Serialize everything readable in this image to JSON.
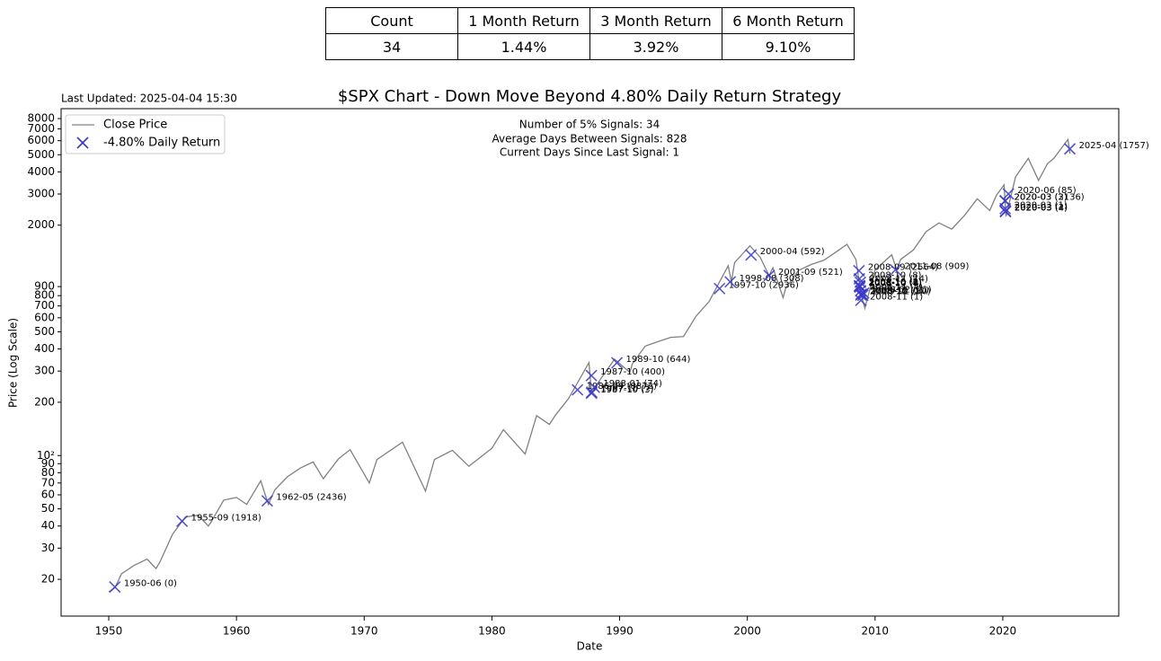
{
  "table": {
    "header": [
      "Count",
      "1 Month Return",
      "3 Month Return",
      "6 Month Return"
    ],
    "rows": [
      [
        "34",
        "1.44%",
        "3.92%",
        "9.10%"
      ]
    ]
  },
  "chart_data": {
    "type": "line",
    "title": "$SPX Chart - Down Move Beyond 4.80% Daily Return Strategy",
    "updated": "Last Updated: 2025-04-04 15:30",
    "xlabel": "Date",
    "ylabel": "Price (Log Scale)",
    "annotations": [
      "Number of 5% Signals: 34",
      "Average Days Between Signals: 828",
      "Current Days Since Last Signal: 1"
    ],
    "xlim": [
      1946.27,
      2029.08
    ],
    "xticks": [
      1950,
      1960,
      1970,
      1980,
      1990,
      2000,
      2010,
      2020
    ],
    "ylim": [
      12.4,
      9100
    ],
    "log_y": true,
    "legend": "upper left",
    "yticks": [
      20,
      30,
      40,
      50,
      60,
      70,
      80,
      90,
      {
        "value": 100,
        "label": "10²"
      },
      200,
      300,
      400,
      500,
      600,
      700,
      800,
      900,
      2000,
      3000,
      4000,
      5000,
      6000,
      7000,
      8000
    ],
    "series": [
      {
        "name": "Close Price",
        "color": "#808080",
        "x": [
          1950.0,
          1950.5,
          1951,
          1952,
          1953,
          1953.7,
          1954,
          1955,
          1956,
          1957,
          1957.8,
          1958,
          1959,
          1960,
          1960.8,
          1961.9,
          1962.5,
          1963,
          1964,
          1965,
          1966,
          1966.8,
          1968,
          1968.9,
          1970.4,
          1971,
          1973,
          1974.8,
          1975.5,
          1976.9,
          1978.2,
          1980,
          1980.9,
          1982.6,
          1983.5,
          1984.5,
          1985,
          1986,
          1987.6,
          1987.8,
          1988.5,
          1989.6,
          1990.8,
          1991,
          1992,
          1993,
          1994,
          1995,
          1996,
          1997,
          1997.8,
          1998.5,
          1998.75,
          1999,
          2000.2,
          2001,
          2001.7,
          2002,
          2002.8,
          2003,
          2004,
          2005,
          2006,
          2007,
          2007.8,
          2008.5,
          2008.9,
          2009.2,
          2010,
          2011.3,
          2011.7,
          2012,
          2013,
          2014,
          2015,
          2016,
          2017,
          2018,
          2018.98,
          2019.5,
          2020.1,
          2020.25,
          2021,
          2022,
          2022.8,
          2023.5,
          2024,
          2025.1,
          2025.26
        ],
        "values": [
          17,
          18,
          21.5,
          24,
          26,
          23,
          25,
          36,
          45,
          46,
          40,
          42,
          56,
          58,
          53,
          72,
          53,
          64,
          76,
          85,
          92,
          74,
          96,
          108,
          70,
          95,
          119,
          63,
          95,
          107,
          87,
          110,
          140,
          102,
          168,
          150,
          170,
          210,
          335,
          225,
          270,
          350,
          295,
          330,
          415,
          440,
          465,
          470,
          615,
          740,
          950,
          1180,
          960,
          1230,
          1530,
          1320,
          1040,
          1150,
          780,
          880,
          1110,
          1200,
          1270,
          1420,
          1560,
          1280,
          820,
          680,
          1120,
          1360,
          1120,
          1280,
          1450,
          1840,
          2060,
          1900,
          2270,
          2820,
          2420,
          2950,
          3380,
          2240,
          3750,
          4770,
          3580,
          4450,
          4770,
          6100,
          5070
        ]
      },
      {
        "name": "-4.80% Daily Return",
        "color": "#3838c8",
        "marker": "x",
        "x": [
          1950.48,
          1955.74,
          1962.41,
          1986.7,
          1987.79,
          1987.8,
          1987.82,
          1988.02,
          1989.79,
          1997.82,
          1998.66,
          2000.29,
          2001.71,
          2008.74,
          2008.77,
          2008.78,
          2008.79,
          2008.8,
          2008.81,
          2008.85,
          2008.87,
          2008.89,
          2008.89,
          2008.92,
          2009.05,
          2009.11,
          2011.6,
          2020.18,
          2020.19,
          2020.19,
          2020.21,
          2020.21,
          2020.44,
          2025.25
        ],
        "values": [
          18.1,
          42.6,
          55.5,
          235,
          283,
          225,
          228,
          243,
          334,
          877,
          957,
          1357,
          1039,
          1106,
          996,
          910,
          899,
          907,
          896,
          952,
          853,
          807,
          752,
          816,
          805,
          827,
          1119,
          2747,
          2741,
          2481,
          2386,
          2398,
          3002,
          5396
        ],
        "labels": [
          "1950-06 (0)",
          "1955-09 (1918)",
          "1962-05 (2436)",
          "1986-09 (8872)",
          "1987-10 (400)",
          "1987-10 (3)",
          "1987-10 (7)",
          "1988-01 (74)",
          "1989-10 (644)",
          "1997-10 (2936)",
          "1998-08 (308)",
          "2000-04 (592)",
          "2001-09 (521)",
          "2008-09 (2564)",
          "2008-10 (8)",
          "2008-10 (2)",
          "2008-10 (1)",
          "2008-10 (6)",
          "2008-10 (7)",
          "2008-11 (14)",
          "2008-11 (7)",
          "2008-11 (7)",
          "2008-11 (1)",
          "2008-12 (11)",
          "2009-01 (50)",
          "2009-02 (21)",
          "2011-08 (909)",
          "2020-03 (3136)",
          "2020-03 (2)",
          "2020-03 (1)",
          "2020-03 (4)",
          "2020-03 (2)",
          "2020-06 (85)",
          "2025-04 (1757)"
        ]
      }
    ]
  }
}
